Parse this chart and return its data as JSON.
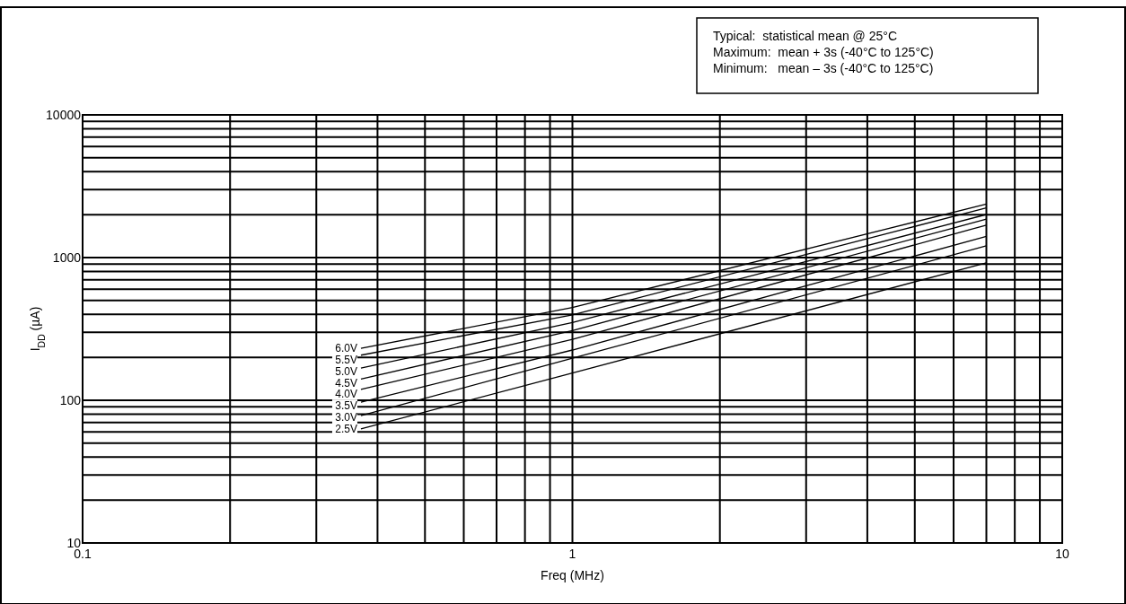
{
  "chart_data": {
    "type": "line",
    "xlabel": "Freq (MHz)",
    "ylabel": "I$_{DD}$ (µA)",
    "log": "xy",
    "grid": true,
    "legend": false,
    "marker": "none",
    "line_style": "solid",
    "xlim": [
      0.1,
      10
    ],
    "xticks": [
      0.1,
      1,
      10
    ],
    "ylim": [
      10,
      10000
    ],
    "yticks": [
      10,
      100,
      1000,
      10000
    ],
    "x": [
      0.37,
      1,
      7
    ],
    "series": [
      {
        "name": "6.0V",
        "color": "#000000",
        "values": [
          231,
          447,
          2372
        ]
      },
      {
        "name": "5.5V",
        "color": "#000000",
        "values": [
          207,
          397,
          2228
        ]
      },
      {
        "name": "5.0V",
        "color": "#000000",
        "values": [
          168,
          351,
          2004
        ]
      },
      {
        "name": "4.5V",
        "color": "#000000",
        "values": [
          141,
          308,
          1858
        ]
      },
      {
        "name": "4.0V",
        "color": "#000000",
        "values": [
          119,
          267,
          1690
        ]
      },
      {
        "name": "3.5V",
        "color": "#000000",
        "values": [
          97,
          225,
          1410
        ]
      },
      {
        "name": "3.0V",
        "color": "#000000",
        "values": [
          78,
          197,
          1208
        ]
      },
      {
        "name": "2.5V",
        "color": "#000000",
        "values": [
          63,
          155,
          920
        ]
      }
    ],
    "annotations": [
      "Typical:  statistical mean @ 25°C",
      "Maximum:  mean + 3s (-40°C to 125°C)",
      "Minimum:   mean – 3s (-40°C to 125°C)"
    ]
  }
}
